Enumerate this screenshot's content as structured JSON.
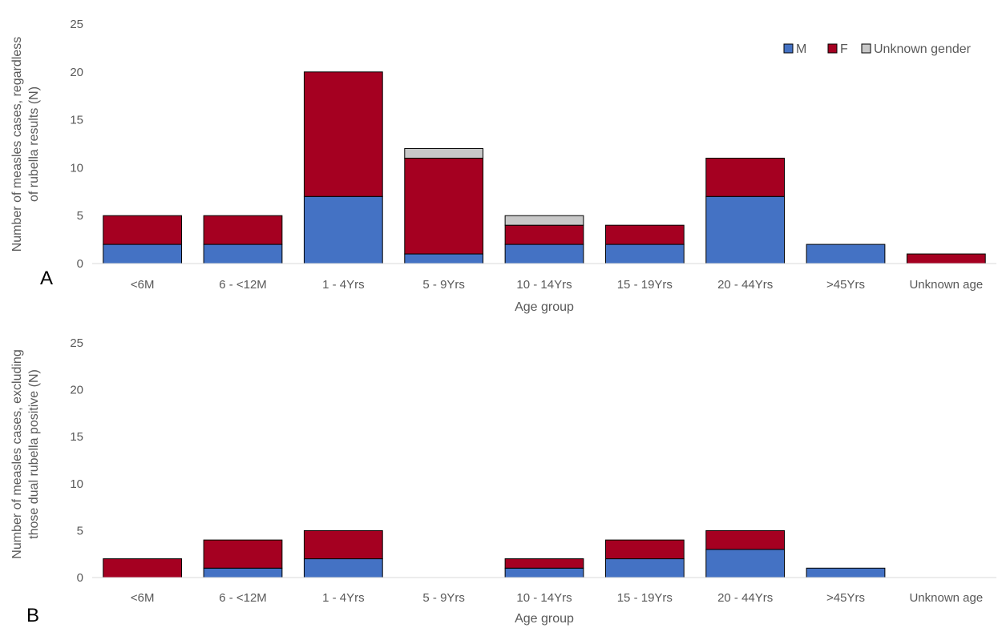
{
  "colors": {
    "M": "#4472c4",
    "F": "#a50021",
    "Unknown gender": "#c8c8c8",
    "axis": "#d9d9d9",
    "text": "#595959",
    "panel_letter": "#000000"
  },
  "legend": {
    "position": "top-right",
    "entries": [
      "M",
      "F",
      "Unknown gender"
    ]
  },
  "chart_data": [
    {
      "panel": "A",
      "type": "bar",
      "stacked": true,
      "categories": [
        "<6M",
        "6 - <12M",
        "1 - 4Yrs",
        "5 - 9Yrs",
        "10 - 14Yrs",
        "15 - 19Yrs",
        "20 - 44Yrs",
        ">45Yrs",
        "Unknown age"
      ],
      "series": [
        {
          "name": "M",
          "values": [
            2,
            2,
            7,
            1,
            2,
            2,
            7,
            2,
            0
          ]
        },
        {
          "name": "F",
          "values": [
            3,
            3,
            13,
            10,
            2,
            2,
            4,
            0,
            1
          ]
        },
        {
          "name": "Unknown gender",
          "values": [
            0,
            0,
            0,
            1,
            1,
            0,
            0,
            0,
            0
          ]
        }
      ],
      "xlabel": "Age group",
      "ylabel_lines": [
        "Number of measles cases, regardless",
        "of rubella results (N)"
      ],
      "ylim": [
        0,
        25
      ],
      "yticks": [
        0,
        5,
        10,
        15,
        20,
        25
      ],
      "grid": false,
      "legend": true
    },
    {
      "panel": "B",
      "type": "bar",
      "stacked": true,
      "categories": [
        "<6M",
        "6 - <12M",
        "1 - 4Yrs",
        "5 - 9Yrs",
        "10 - 14Yrs",
        "15 - 19Yrs",
        "20 - 44Yrs",
        ">45Yrs",
        "Unknown age"
      ],
      "series": [
        {
          "name": "M",
          "values": [
            0,
            1,
            2,
            0,
            1,
            2,
            3,
            1,
            0
          ]
        },
        {
          "name": "F",
          "values": [
            2,
            3,
            3,
            0,
            1,
            2,
            2,
            0,
            0
          ]
        },
        {
          "name": "Unknown gender",
          "values": [
            0,
            0,
            0,
            0,
            0,
            0,
            0,
            0,
            0
          ]
        }
      ],
      "xlabel": "Age group",
      "ylabel_lines": [
        "Number of measles cases, excluding",
        "those dual rubella positive (N)"
      ],
      "ylim": [
        0,
        25
      ],
      "yticks": [
        0,
        5,
        10,
        15,
        20,
        25
      ],
      "grid": false,
      "legend": false
    }
  ]
}
